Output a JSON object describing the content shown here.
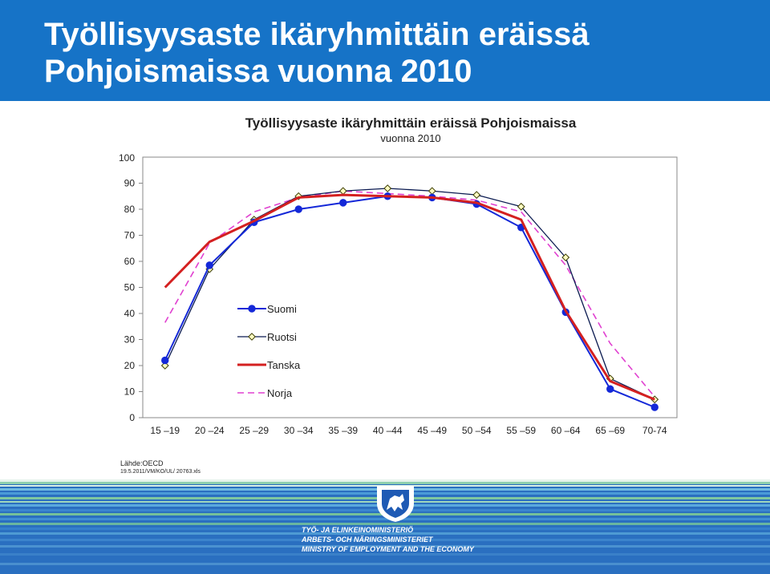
{
  "slide_title": "Työllisyysaste ikäryhmittäin eräissä Pohjoismaissa vuonna 2010",
  "source_lines": [
    "Lähde:OECD",
    "19.5.2011/VM/KO/UL/ 20763.xls"
  ],
  "ministry_lines": [
    "TYÖ- JA ELINKEINOMINISTERIÖ",
    "ARBETS- OCH NÄRINGSMINISTERIET",
    "MINISTRY OF EMPLOYMENT AND THE ECONOMY"
  ],
  "colors": {
    "banner": "#1673c7",
    "suomi": "#1428d8",
    "ruotsi": "#0a1a50",
    "tanska": "#d42020",
    "norja": "#e040d0",
    "footer_blue": "#2a6fc0",
    "footer_green": "#7fc8a0"
  },
  "chart_data": {
    "type": "line",
    "title": "Työllisyysaste ikäryhmittäin eräissä Pohjoismaissa",
    "subtitle": "vuonna 2010",
    "categories": [
      "15 –19",
      "20 –24",
      "25 –29",
      "30 –34",
      "35 –39",
      "40 –44",
      "45 –49",
      "50 –54",
      "55 –59",
      "60 –64",
      "65 –69",
      "70-74"
    ],
    "ylim": [
      0,
      100
    ],
    "yticks": [
      0,
      10,
      20,
      30,
      40,
      50,
      60,
      70,
      80,
      90,
      100
    ],
    "grid": false,
    "legend_position": "center-left",
    "series": [
      {
        "name": "Suomi",
        "values": [
          22,
          58.5,
          75,
          80,
          82.5,
          85,
          84.5,
          82,
          73,
          40.5,
          11,
          4
        ],
        "marker": "circle"
      },
      {
        "name": "Ruotsi",
        "values": [
          20,
          57,
          76,
          85,
          87,
          88,
          87,
          85.5,
          81,
          61.5,
          15,
          7
        ],
        "marker": "diamond"
      },
      {
        "name": "Tanska",
        "values": [
          50,
          67.5,
          75.5,
          84.5,
          85.5,
          85,
          84.5,
          82.5,
          76,
          41,
          14,
          7
        ],
        "marker": "none"
      },
      {
        "name": "Norja",
        "values": [
          36.5,
          67,
          79,
          84.5,
          87,
          86,
          85,
          83.5,
          79,
          58.5,
          28.5,
          8
        ],
        "marker": "none",
        "dashed": true
      }
    ]
  }
}
